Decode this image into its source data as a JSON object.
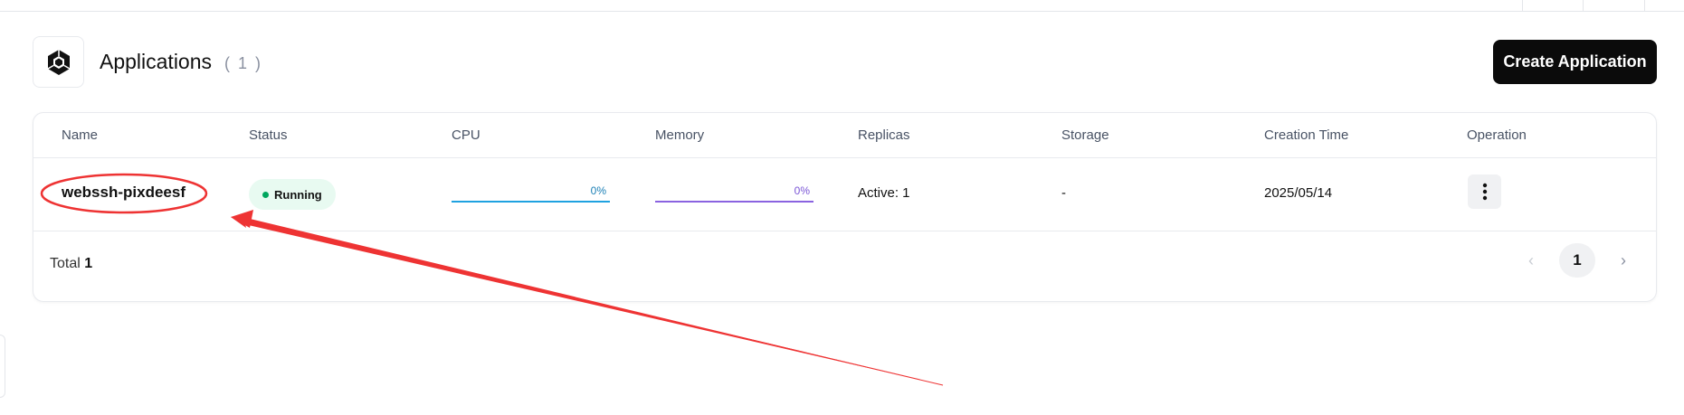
{
  "header": {
    "title": "Applications",
    "count": "( 1 )",
    "create_label": "Create Application",
    "logo_icon": "hexagon-gem-icon"
  },
  "table": {
    "columns": [
      "Name",
      "Status",
      "CPU",
      "Memory",
      "Replicas",
      "Storage",
      "Creation Time",
      "Operation"
    ],
    "rows": [
      {
        "name": "webssh-pixdeesf",
        "status": "Running",
        "cpu": "0%",
        "cpu_value": 0,
        "memory": "0%",
        "memory_value": 0,
        "replicas": "Active: 1",
        "storage": "-",
        "creation_time": "2025/05/14",
        "operation_icon": "more-vertical-icon"
      }
    ]
  },
  "footer": {
    "total_label": "Total",
    "total_value": "1",
    "current_page": "1",
    "prev": "‹",
    "next": "›"
  },
  "colors": {
    "status_running": "#00a65e",
    "cpu_bar": "#1fa2e0",
    "memory_bar": "#8a63e0",
    "annotation": "#ee3333",
    "button_bg": "#0b0b0b"
  }
}
